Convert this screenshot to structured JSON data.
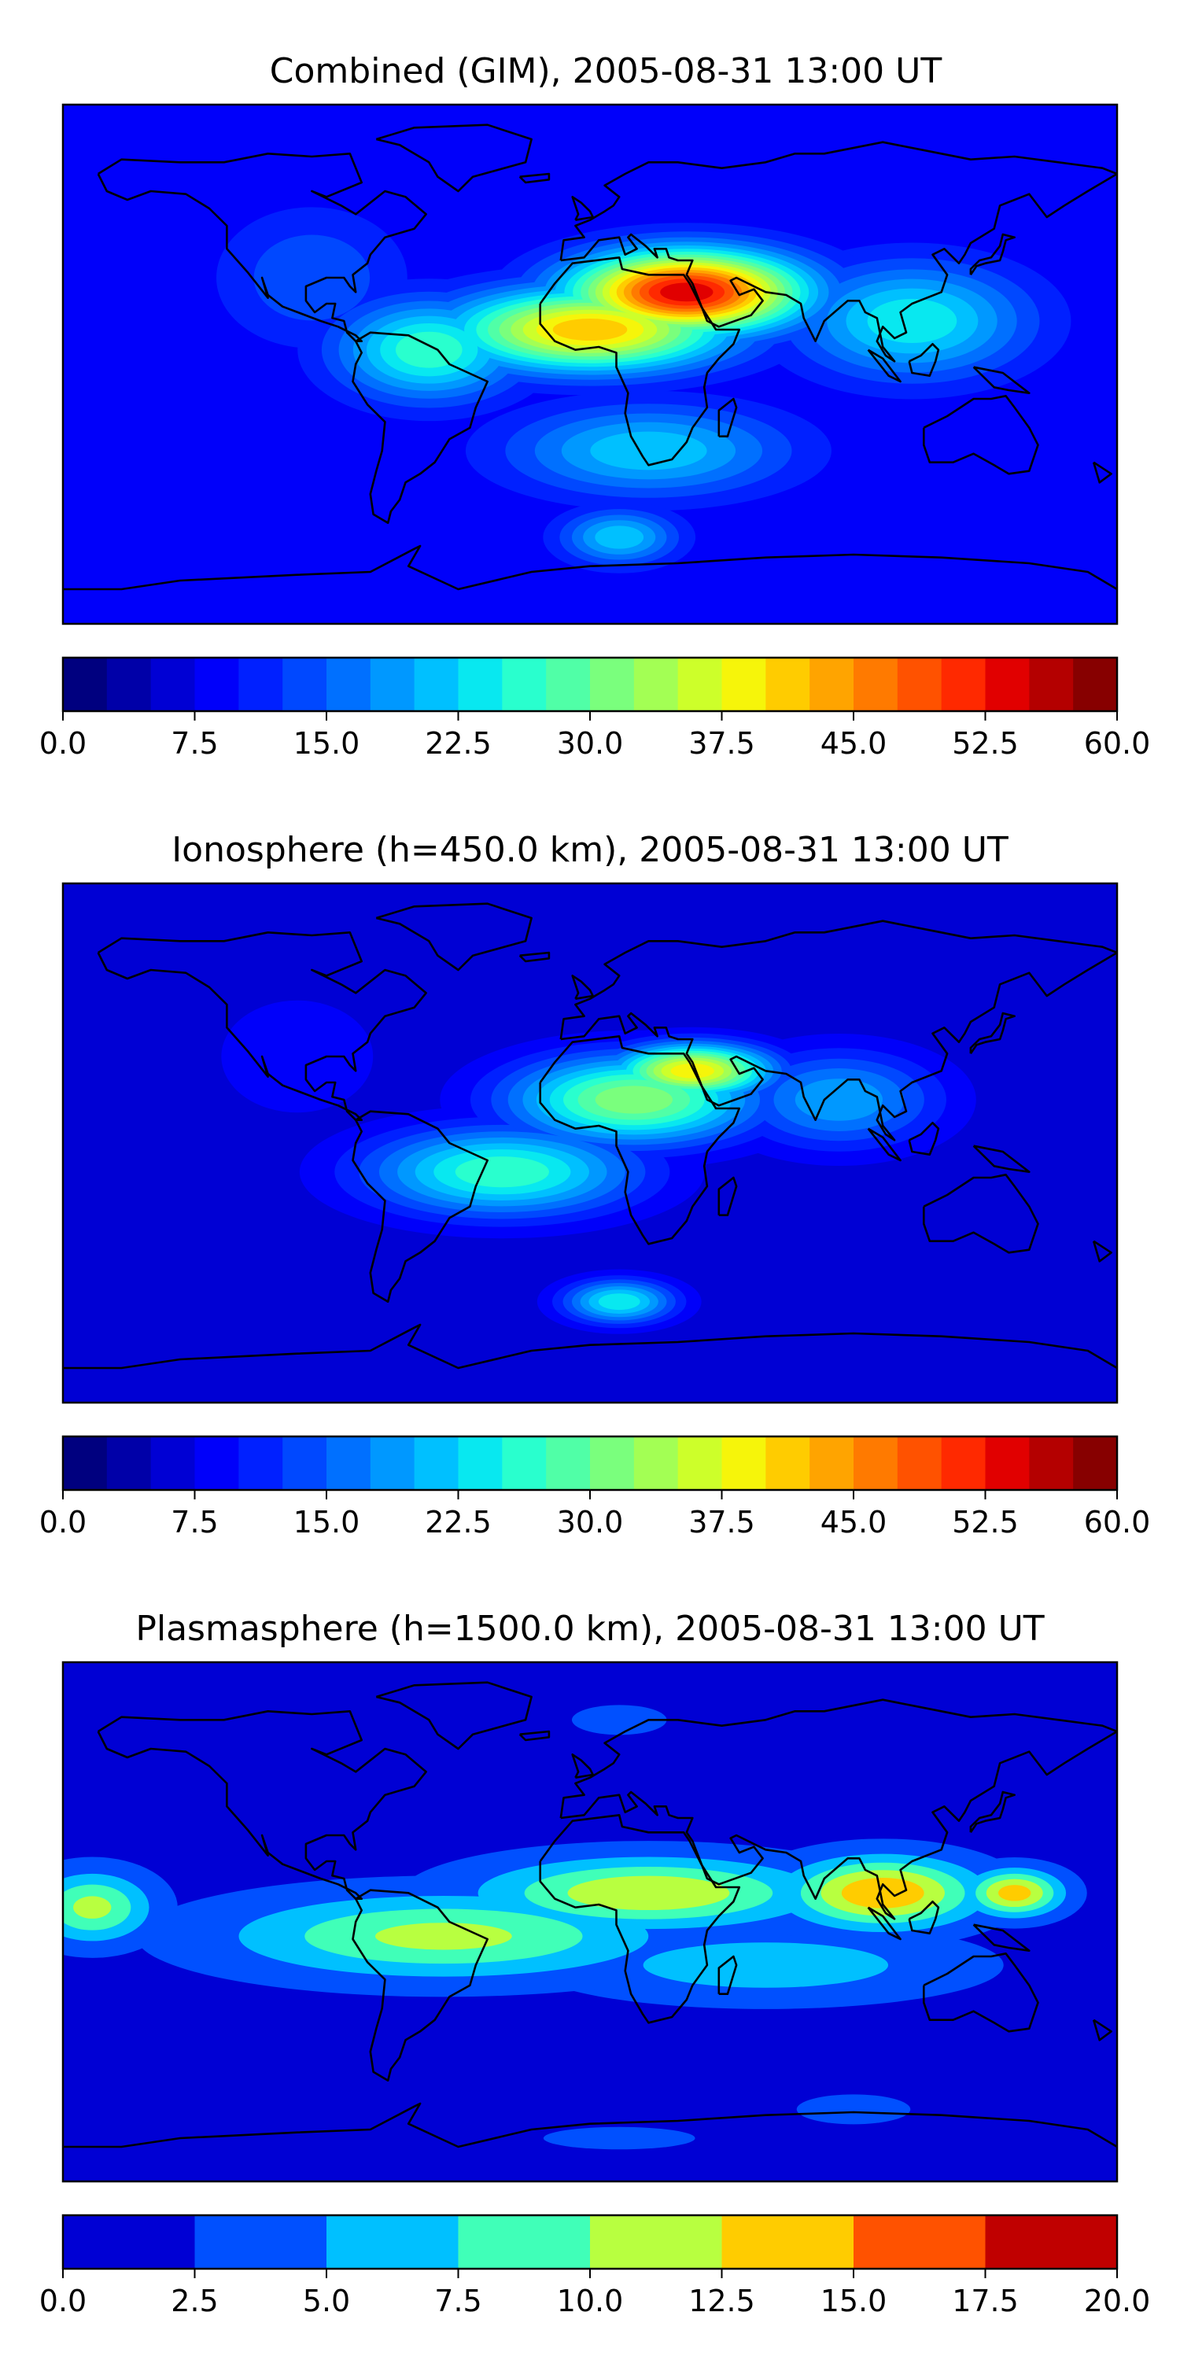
{
  "panels": [
    {
      "title": "Combined (GIM), 2005-08-31 13:00 UT",
      "colorbar": {
        "levels": [
          0.0,
          2.5,
          5.0,
          7.5,
          10.0,
          12.5,
          15.0,
          17.5,
          20.0,
          22.5,
          25.0,
          27.5,
          30.0,
          32.5,
          35.0,
          37.5,
          40.0,
          42.5,
          45.0,
          47.5,
          50.0,
          52.5,
          55.0,
          57.5,
          60.0
        ],
        "tick_labels": [
          "0.0",
          "7.5",
          "15.0",
          "22.5",
          "30.0",
          "37.5",
          "45.0",
          "52.5",
          "60.0"
        ],
        "colors": [
          "#00007f",
          "#0000a8",
          "#0000d4",
          "#0000fa",
          "#0020ff",
          "#0048ff",
          "#0070ff",
          "#0098ff",
          "#00c0ff",
          "#08e8f0",
          "#29ffce",
          "#50ffa7",
          "#7aff7d",
          "#a3ff54",
          "#cdff2a",
          "#f6f50a",
          "#ffcc00",
          "#ffa400",
          "#ff7a00",
          "#ff5200",
          "#ff2900",
          "#e10000",
          "#b40000",
          "#870000"
        ]
      }
    },
    {
      "title": "Ionosphere  (h=450.0 km), 2005-08-31 13:00 UT",
      "colorbar": {
        "levels": [
          0.0,
          2.5,
          5.0,
          7.5,
          10.0,
          12.5,
          15.0,
          17.5,
          20.0,
          22.5,
          25.0,
          27.5,
          30.0,
          32.5,
          35.0,
          37.5,
          40.0,
          42.5,
          45.0,
          47.5,
          50.0,
          52.5,
          55.0,
          57.5,
          60.0
        ],
        "tick_labels": [
          "0.0",
          "7.5",
          "15.0",
          "22.5",
          "30.0",
          "37.5",
          "45.0",
          "52.5",
          "60.0"
        ],
        "colors": [
          "#00007f",
          "#0000a8",
          "#0000d4",
          "#0000fa",
          "#0020ff",
          "#0048ff",
          "#0070ff",
          "#0098ff",
          "#00c0ff",
          "#08e8f0",
          "#29ffce",
          "#50ffa7",
          "#7aff7d",
          "#a3ff54",
          "#cdff2a",
          "#f6f50a",
          "#ffcc00",
          "#ffa400",
          "#ff7a00",
          "#ff5200",
          "#ff2900",
          "#e10000",
          "#b40000",
          "#870000"
        ]
      }
    },
    {
      "title": "Plasmasphere (h=1500.0 km), 2005-08-31 13:00 UT",
      "colorbar": {
        "levels": [
          0.0,
          2.5,
          5.0,
          7.5,
          10.0,
          12.5,
          15.0,
          17.5,
          20.0
        ],
        "tick_labels": [
          "0.0",
          "2.5",
          "5.0",
          "7.5",
          "10.0",
          "12.5",
          "15.0",
          "17.5",
          "20.0"
        ],
        "colors": [
          "#0000d4",
          "#0050ff",
          "#00c0ff",
          "#40ffb8",
          "#b8ff40",
          "#ffcc00",
          "#ff5200",
          "#c00000"
        ]
      }
    }
  ],
  "chart_data": [
    {
      "type": "heatmap",
      "title": "Combined (GIM), 2005-08-31 13:00 UT",
      "projection": "equirectangular world map with coastlines",
      "xlim": [
        -180,
        180
      ],
      "ylim": [
        -90,
        90
      ],
      "value_range": [
        0.0,
        60.0
      ],
      "background_level": 7.5,
      "features": [
        {
          "lon": 33,
          "lat": 25,
          "peak": 55.0,
          "sx": 50,
          "sy": 18
        },
        {
          "lon": 0,
          "lat": 12,
          "peak": 42.5,
          "sx": 60,
          "sy": 18
        },
        {
          "lon": -55,
          "lat": 5,
          "peak": 27.5,
          "sx": 40,
          "sy": 22
        },
        {
          "lon": 110,
          "lat": 15,
          "peak": 25.0,
          "sx": 50,
          "sy": 25
        },
        {
          "lon": 20,
          "lat": -30,
          "peak": 22.5,
          "sx": 60,
          "sy": 20
        },
        {
          "lon": 10,
          "lat": -60,
          "peak": 22.5,
          "sx": 25,
          "sy": 12
        },
        {
          "lon": -95,
          "lat": 30,
          "peak": 15.0,
          "sx": 40,
          "sy": 30
        },
        {
          "lon": -175,
          "lat": 0,
          "peak": 10.0,
          "sx": 40,
          "sy": 40
        }
      ]
    },
    {
      "type": "heatmap",
      "title": "Ionosphere  (h=450.0 km), 2005-08-31 13:00 UT",
      "projection": "equirectangular world map with coastlines",
      "xlim": [
        -180,
        180
      ],
      "ylim": [
        -90,
        90
      ],
      "value_range": [
        0.0,
        60.0
      ],
      "background_level": 5.0,
      "features": [
        {
          "lon": 35,
          "lat": 25,
          "peak": 40.0,
          "sx": 35,
          "sy": 12
        },
        {
          "lon": 15,
          "lat": 15,
          "peak": 32.5,
          "sx": 55,
          "sy": 20
        },
        {
          "lon": -30,
          "lat": -10,
          "peak": 27.5,
          "sx": 60,
          "sy": 20
        },
        {
          "lon": 85,
          "lat": 15,
          "peak": 20.0,
          "sx": 45,
          "sy": 22
        },
        {
          "lon": 10,
          "lat": -55,
          "peak": 25.0,
          "sx": 25,
          "sy": 10
        },
        {
          "lon": -100,
          "lat": 30,
          "peak": 10.0,
          "sx": 40,
          "sy": 30
        }
      ]
    },
    {
      "type": "heatmap",
      "title": "Plasmasphere (h=1500.0 km), 2005-08-31 13:00 UT",
      "projection": "equirectangular world map with coastlines",
      "xlim": [
        -180,
        180
      ],
      "ylim": [
        -90,
        90
      ],
      "value_range": [
        0.0,
        20.0
      ],
      "background_level": 1.5,
      "features": [
        {
          "lon": 100,
          "lat": 10,
          "peak": 15.0,
          "sx": 40,
          "sy": 15
        },
        {
          "lon": 145,
          "lat": 10,
          "peak": 14.0,
          "sx": 20,
          "sy": 10
        },
        {
          "lon": 20,
          "lat": 10,
          "peak": 12.5,
          "sx": 70,
          "sy": 15
        },
        {
          "lon": -50,
          "lat": -5,
          "peak": 11.0,
          "sx": 90,
          "sy": 18
        },
        {
          "lon": -170,
          "lat": 5,
          "peak": 11.0,
          "sx": 25,
          "sy": 15
        },
        {
          "lon": 60,
          "lat": -15,
          "peak": 7.0,
          "sx": 80,
          "sy": 15
        },
        {
          "lon": 10,
          "lat": 70,
          "peak": 3.5,
          "sx": 25,
          "sy": 8
        },
        {
          "lon": 90,
          "lat": -65,
          "peak": 3.5,
          "sx": 30,
          "sy": 8
        },
        {
          "lon": 10,
          "lat": -75,
          "peak": 3.5,
          "sx": 40,
          "sy": 6
        }
      ]
    }
  ]
}
